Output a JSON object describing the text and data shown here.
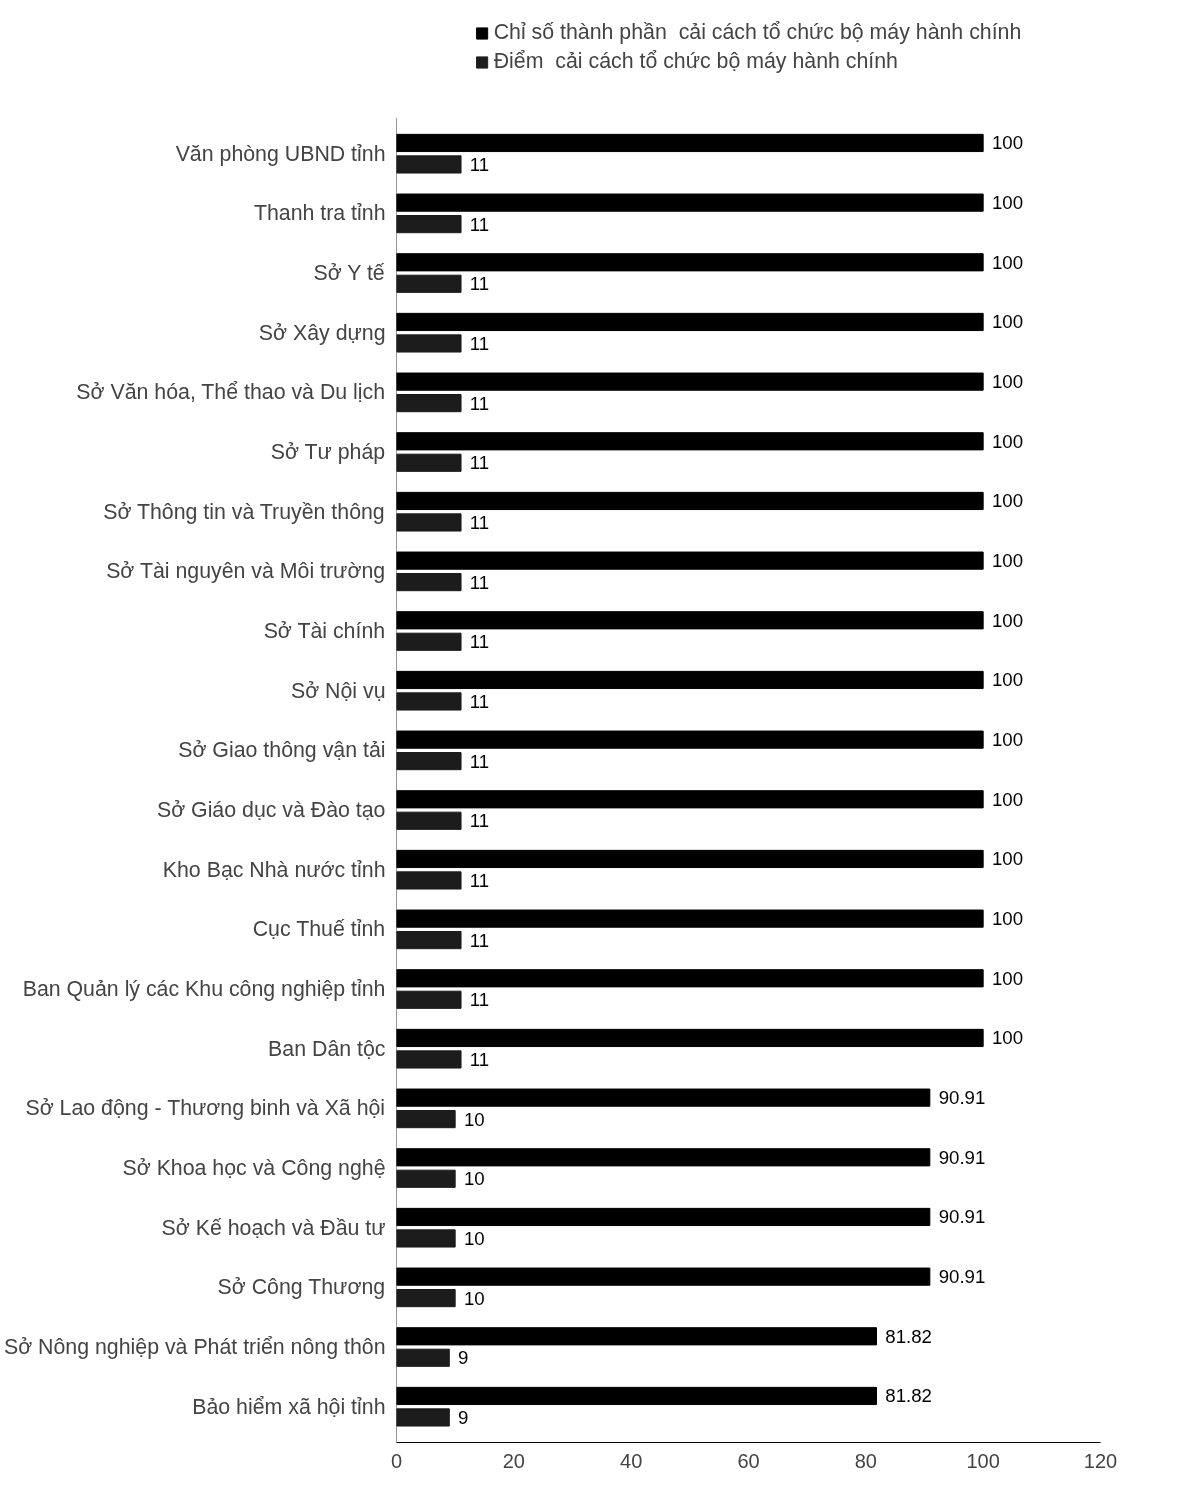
{
  "chart_data": {
    "type": "bar",
    "orientation": "horizontal",
    "categories": [
      "Văn phòng UBND tỉnh",
      "Thanh tra tỉnh",
      "Sở Y tế",
      "Sở Xây dựng",
      "Sở Văn hóa, Thể thao và Du lịch",
      "Sở Tư pháp",
      "Sở Thông tin và Truyền thông",
      "Sở Tài nguyên và Môi trường",
      "Sở Tài chính",
      "Sở Nội vụ",
      "Sở Giao thông vận tải",
      "Sở Giáo dục và Đào tạo",
      "Kho Bạc Nhà nước tỉnh",
      "Cục Thuế tỉnh",
      "Ban Quản lý các Khu công nghiệp tỉnh",
      "Ban Dân tộc",
      "Sở Lao động - Thương binh và Xã hội",
      "Sở Khoa học và Công nghệ",
      "Sở Kế hoạch và Đầu tư",
      "Sở Công Thương",
      "Sở Nông nghiệp và Phát triển nông thôn",
      "Bảo hiểm xã hội tỉnh"
    ],
    "series": [
      {
        "name": "Chỉ số thành phần  cải cách tổ chức bộ máy hành chính",
        "color": "#000000",
        "values": [
          100,
          100,
          100,
          100,
          100,
          100,
          100,
          100,
          100,
          100,
          100,
          100,
          100,
          100,
          100,
          100,
          90.91,
          90.91,
          90.91,
          90.91,
          81.82,
          81.82
        ]
      },
      {
        "name": "Điểm  cải cách tổ chức bộ máy hành chính",
        "color": "#1c1c1c",
        "values": [
          11,
          11,
          11,
          11,
          11,
          11,
          11,
          11,
          11,
          11,
          11,
          11,
          11,
          11,
          11,
          11,
          10,
          10,
          10,
          10,
          9,
          9
        ]
      }
    ],
    "xlim": [
      0,
      120
    ],
    "xticks": [
      0,
      20,
      40,
      60,
      80,
      100,
      120
    ],
    "data_labels": true,
    "legend": "top",
    "grid": false
  }
}
